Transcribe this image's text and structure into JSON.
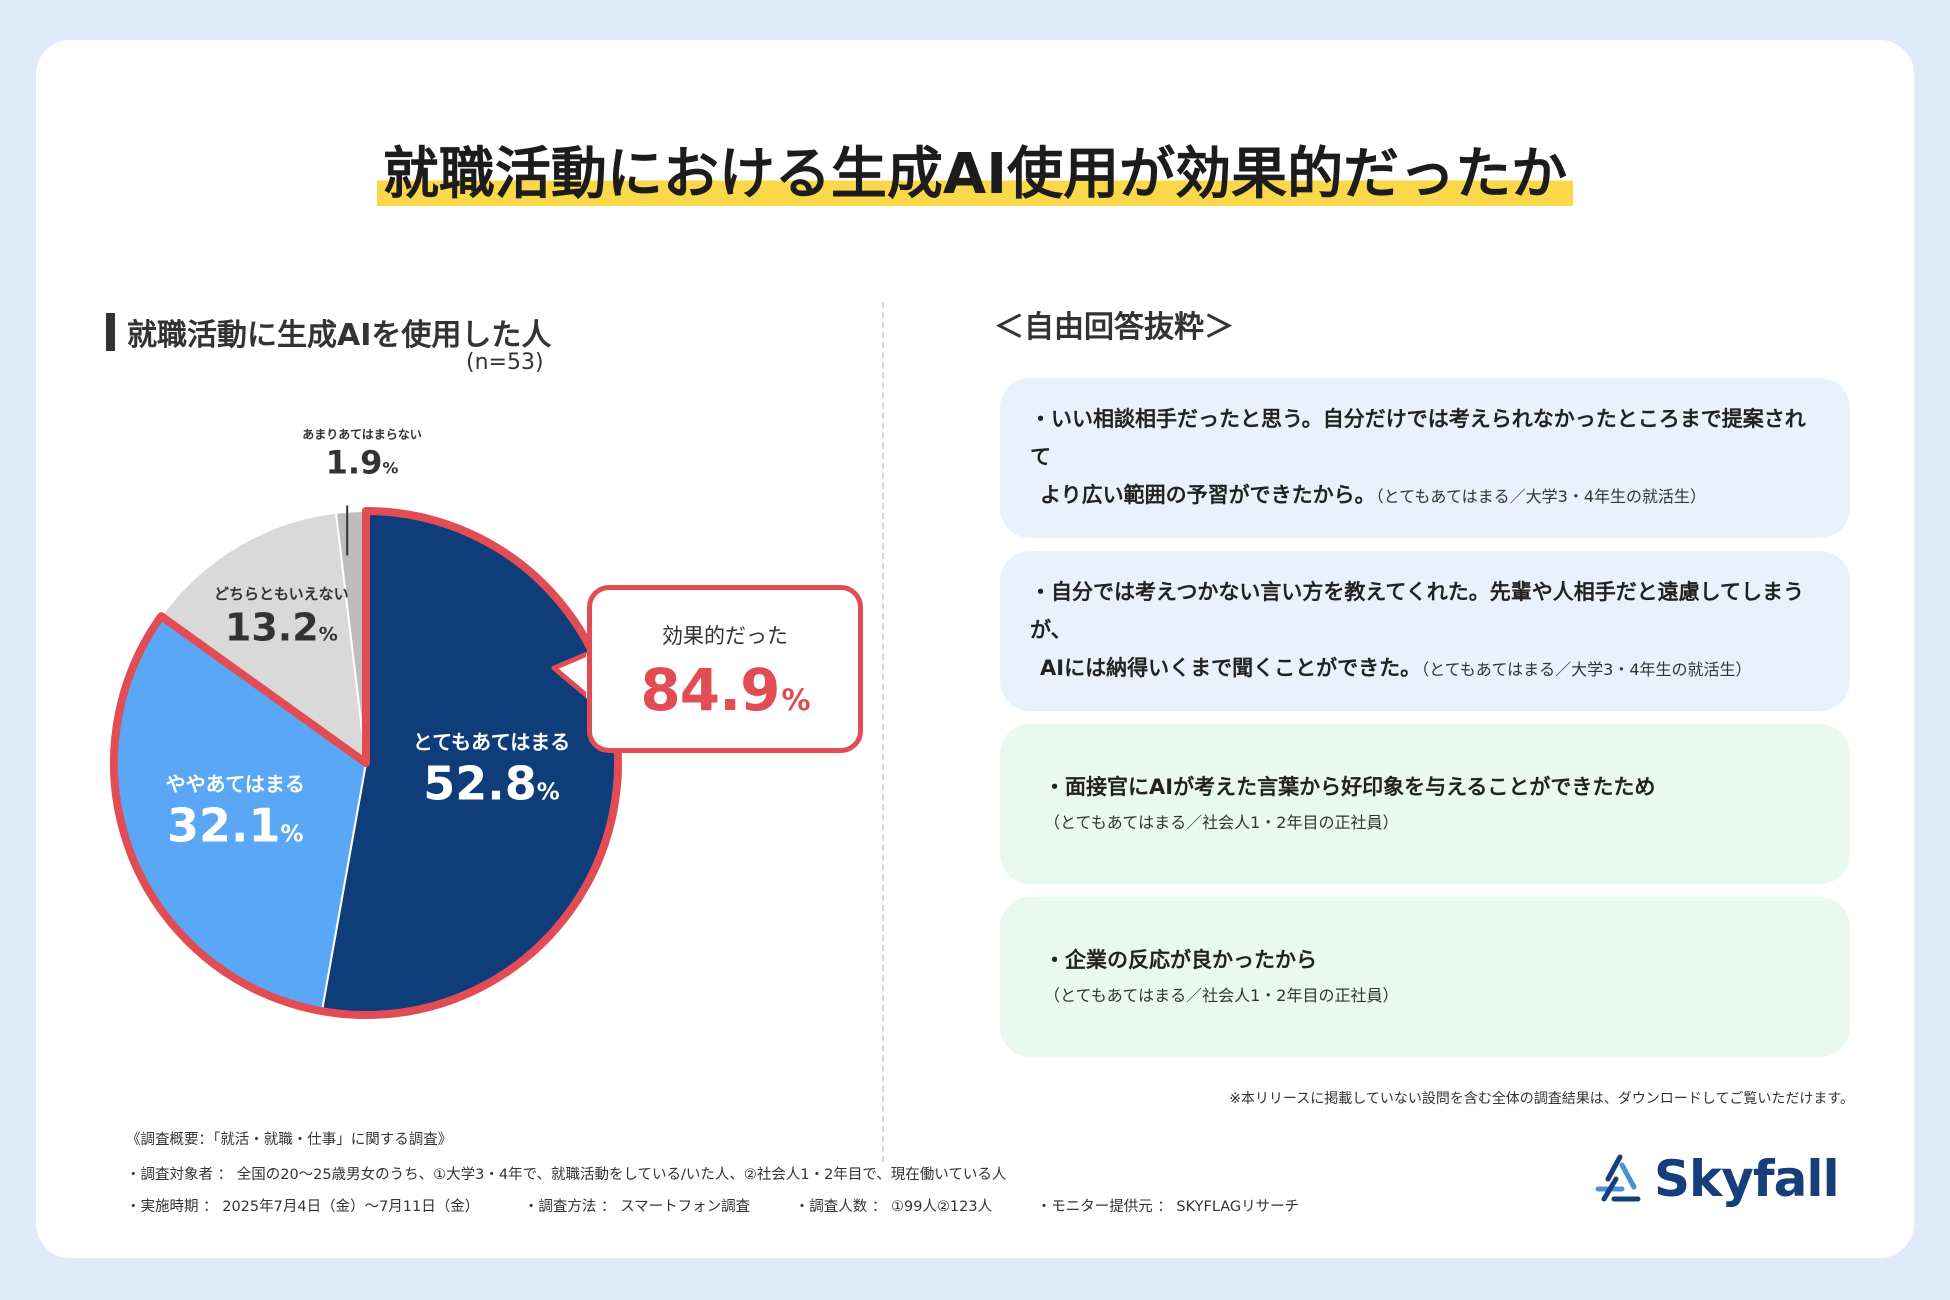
{
  "title": "就職活動における生成AI使用が効果的だったか",
  "section_title": "就職活動に生成AIを使用した人",
  "sample_size": "(n=53)",
  "callout": {
    "label": "効果的だった",
    "value": "84.9",
    "unit": "%"
  },
  "chart_data": {
    "type": "pie",
    "slices": [
      {
        "label": "とてもあてはまる",
        "value": 52.8,
        "display": "52.8",
        "color": "#0e3d7a",
        "highlight": true
      },
      {
        "label": "ややあてはまる",
        "value": 32.1,
        "display": "32.1",
        "color": "#5aa8f5",
        "highlight": true
      },
      {
        "label": "どちらともいえない",
        "value": 13.2,
        "display": "13.2",
        "color": "#d9d9d9",
        "highlight": false
      },
      {
        "label": "あまりあてはまらない",
        "value": 1.9,
        "display": "1.9",
        "color": "#bdbdbd",
        "highlight": false
      }
    ],
    "unit": "%",
    "highlight_color": "#e24c55"
  },
  "free_answers": {
    "heading": "＜自由回答抜粋＞",
    "items": [
      {
        "line1": "・いい相談相手だったと思う。自分だけでは考えられなかったところまで提案されて",
        "line2": "より広い範囲の予習ができたから。",
        "attribution": "（とてもあてはまる／大学3・4年生の就活生）",
        "attr_inline": true,
        "tone": "blue"
      },
      {
        "line1": "・自分では考えつかない言い方を教えてくれた。先輩や人相手だと遠慮してしまうが、",
        "line2": "AIには納得いくまで聞くことができた。",
        "attribution": "（とてもあてはまる／大学3・4年生の就活生）",
        "attr_inline": true,
        "tone": "blue"
      },
      {
        "line1": "・面接官にAIが考えた言葉から好印象を与えることができたため",
        "line2": "",
        "attribution": "（とてもあてはまる／社会人1・2年目の正社員）",
        "attr_inline": false,
        "tone": "green"
      },
      {
        "line1": "・企業の反応が良かったから",
        "line2": "",
        "attribution": "（とてもあてはまる／社会人1・2年目の正社員）",
        "attr_inline": false,
        "tone": "green"
      }
    ]
  },
  "footnote": "※本リリースに掲載していない設問を含む全体の調査結果は、ダウンロードしてご覧いただけます。",
  "survey": {
    "title": "《調査概要：「就活・就職・仕事」に関する調査》",
    "target": "・調査対象者 ： 全国の20〜25歳男女のうち、①大学3・4年で、就職活動をしている/いた人、②社会人1・2年目で、現在働いている人",
    "period": "・実施時期 ： 2025年7月4日（金）〜7月11日（金）",
    "method": "・調査方法 ： スマートフォン調査",
    "count": "・調査人数 ： ①99人②123人",
    "provider": "・モニター提供元 ： SKYFLAGリサーチ"
  },
  "logo": {
    "text": "Skyfall",
    "icon": "skyfall-logo-icon"
  }
}
